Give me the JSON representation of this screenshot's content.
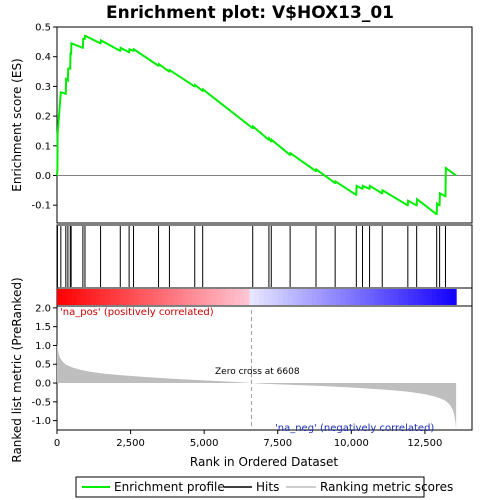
{
  "chart_data": {
    "type": "line",
    "title": "Enrichment plot: V$HOX13_01",
    "xlabel": "Rank in Ordered Dataset",
    "xlim": [
      0,
      14100
    ],
    "x_ticks": [
      0,
      2500,
      5000,
      7500,
      10000,
      12500
    ],
    "x_tick_labels": [
      "0",
      "2,500",
      "5,000",
      "7,500",
      "10,000",
      "12,500"
    ],
    "panels": [
      {
        "name": "enrichment",
        "ylabel": "Enrichment score (ES)",
        "ylim": [
          -0.16,
          0.5
        ],
        "y_ticks": [
          -0.1,
          0.0,
          0.1,
          0.2,
          0.3,
          0.4,
          0.5
        ],
        "y_tick_labels": [
          "-0.1",
          "0.0",
          "0.1",
          "0.2",
          "0.3",
          "0.4",
          "0.5"
        ],
        "grid": false
      },
      {
        "name": "hits",
        "hit_positions": [
          15,
          130,
          300,
          370,
          450,
          480,
          880,
          950,
          1480,
          2150,
          2450,
          2600,
          3450,
          3820,
          4680,
          4950,
          6650,
          7200,
          7280,
          7920,
          8800,
          9450,
          10170,
          10380,
          10620,
          11050,
          11920,
          12220,
          12900,
          13000,
          13200
        ]
      },
      {
        "name": "ranked_metric",
        "ylabel": "Ranked list metric (PreRanked)",
        "ylim": [
          -1.25,
          2.05
        ],
        "y_ticks": [
          -1.0,
          -0.5,
          0.0,
          0.5,
          1.0,
          1.5,
          2.0
        ],
        "y_tick_labels": [
          "-1.0",
          "-0.5",
          "0.0",
          "0.5",
          "1.0",
          "1.5",
          "2.0"
        ],
        "zero_cross_label": "Zero cross at 6608",
        "zero_cross_x": 6608,
        "pos_label": "'na_pos' (positively correlated)",
        "neg_label": "'na_neg' (negatively correlated)"
      }
    ],
    "series": [
      {
        "name": "Enrichment profile",
        "color": "#00ee00",
        "x": [
          0,
          15,
          20,
          130,
          140,
          300,
          310,
          370,
          380,
          450,
          460,
          480,
          490,
          870,
          880,
          890,
          940,
          950,
          960,
          1470,
          1480,
          1490,
          2140,
          2150,
          2160,
          2440,
          2450,
          2460,
          2590,
          2600,
          2610,
          3440,
          3450,
          3460,
          3810,
          3820,
          3830,
          4670,
          4680,
          4690,
          4940,
          4950,
          4960,
          6640,
          6650,
          6660,
          7190,
          7200,
          7210,
          7270,
          7280,
          7290,
          7910,
          7920,
          7930,
          8790,
          8800,
          8810,
          9440,
          9450,
          9460,
          10160,
          10170,
          10180,
          10370,
          10380,
          10390,
          10610,
          10620,
          10630,
          11040,
          11050,
          11060,
          11910,
          11920,
          11930,
          12210,
          12220,
          12230,
          12890,
          12900,
          12910,
          12990,
          13000,
          13010,
          13190,
          13200,
          13210,
          13560
        ],
        "y": [
          0.0,
          0.02,
          0.14,
          0.28,
          0.28,
          0.275,
          0.325,
          0.32,
          0.36,
          0.36,
          0.41,
          0.41,
          0.445,
          0.43,
          0.43,
          0.46,
          0.46,
          0.47,
          0.47,
          0.445,
          0.445,
          0.455,
          0.42,
          0.42,
          0.43,
          0.415,
          0.415,
          0.425,
          0.42,
          0.42,
          0.425,
          0.37,
          0.37,
          0.375,
          0.35,
          0.35,
          0.355,
          0.3,
          0.3,
          0.305,
          0.285,
          0.285,
          0.29,
          0.16,
          0.16,
          0.165,
          0.12,
          0.12,
          0.125,
          0.115,
          0.115,
          0.12,
          0.07,
          0.07,
          0.075,
          0.015,
          0.015,
          0.02,
          -0.025,
          -0.025,
          -0.02,
          -0.065,
          -0.065,
          -0.035,
          -0.045,
          -0.045,
          -0.035,
          -0.045,
          -0.045,
          -0.035,
          -0.06,
          -0.06,
          -0.05,
          -0.1,
          -0.1,
          -0.085,
          -0.1,
          -0.1,
          -0.08,
          -0.13,
          -0.13,
          -0.095,
          -0.1,
          -0.1,
          -0.06,
          -0.07,
          -0.07,
          0.025,
          0.0
        ]
      },
      {
        "name": "Hits",
        "color": "#000000"
      },
      {
        "name": "Ranking metric scores",
        "color": "#bebebe",
        "x": [
          0,
          50,
          100,
          200,
          300,
          500,
          800,
          1200,
          1600,
          2000,
          2500,
          3000,
          4000,
          5000,
          6000,
          6608,
          7000,
          8000,
          9000,
          10000,
          11000,
          11500,
          12000,
          12500,
          12800,
          13000,
          13200,
          13350,
          13450,
          13500,
          13540,
          13560
        ],
        "y": [
          1.05,
          0.8,
          0.68,
          0.56,
          0.49,
          0.42,
          0.35,
          0.29,
          0.25,
          0.22,
          0.19,
          0.16,
          0.11,
          0.07,
          0.03,
          0.0,
          -0.02,
          -0.05,
          -0.08,
          -0.12,
          -0.17,
          -0.2,
          -0.24,
          -0.3,
          -0.35,
          -0.4,
          -0.47,
          -0.58,
          -0.72,
          -0.85,
          -1.05,
          -1.22
        ]
      }
    ]
  }
}
